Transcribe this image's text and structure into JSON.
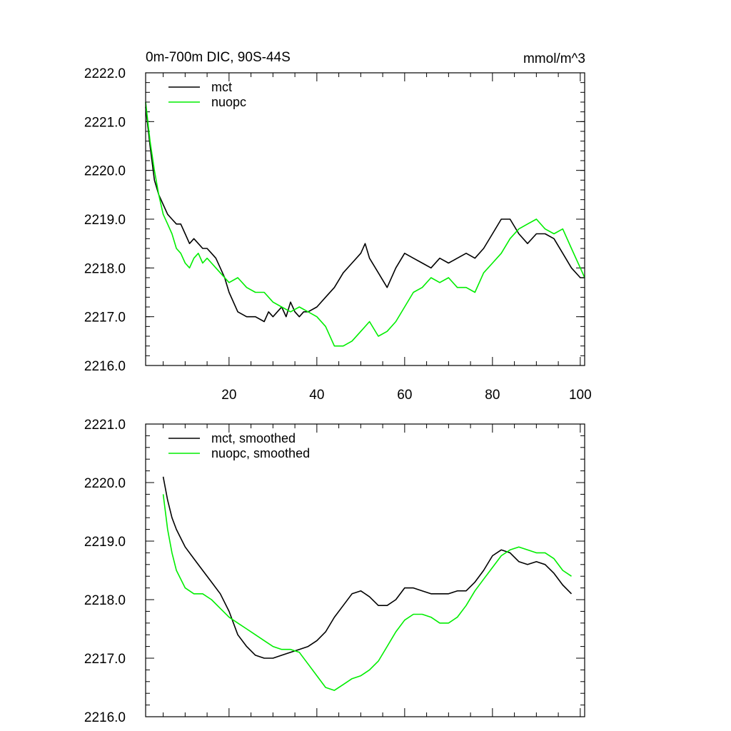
{
  "chart_data": [
    {
      "type": "line",
      "title": "0m-700m DIC, 90S-44S",
      "units_label": "mmol/m^3",
      "xlabel": "",
      "ylabel": "",
      "xlim": [
        1,
        101
      ],
      "ylim": [
        2216.0,
        2222.0
      ],
      "y_ticks": [
        2216.0,
        2217.0,
        2218.0,
        2219.0,
        2220.0,
        2221.0,
        2222.0
      ],
      "y_tick_labels": [
        "2216.0",
        "2217.0",
        "2218.0",
        "2219.0",
        "2220.0",
        "2221.0",
        "2222.0"
      ],
      "x_ticks": [
        20,
        40,
        60,
        80,
        100
      ],
      "x_tick_labels": [
        "20",
        "40",
        "60",
        "80",
        "100"
      ],
      "legend_position": "top-left",
      "grid": false,
      "series": [
        {
          "name": "mct",
          "color": "#000000",
          "x": [
            1,
            2,
            3,
            4,
            5,
            6,
            7,
            8,
            9,
            10,
            11,
            12,
            13,
            14,
            15,
            16,
            17,
            18,
            19,
            20,
            22,
            24,
            26,
            28,
            29,
            30,
            31,
            32,
            33,
            34,
            35,
            36,
            37,
            38,
            40,
            42,
            44,
            46,
            48,
            50,
            51,
            52,
            54,
            56,
            58,
            60,
            62,
            64,
            66,
            68,
            70,
            72,
            74,
            76,
            78,
            80,
            82,
            84,
            86,
            88,
            90,
            92,
            94,
            96,
            98,
            100,
            101
          ],
          "y": [
            2221.3,
            2220.5,
            2219.8,
            2219.5,
            2219.3,
            2219.1,
            2219.0,
            2218.9,
            2218.9,
            2218.7,
            2218.5,
            2218.6,
            2218.5,
            2218.4,
            2218.4,
            2218.3,
            2218.2,
            2218.0,
            2217.8,
            2217.5,
            2217.1,
            2217.0,
            2217.0,
            2216.9,
            2217.1,
            2217.0,
            2217.1,
            2217.2,
            2217.0,
            2217.3,
            2217.1,
            2217.0,
            2217.1,
            2217.1,
            2217.2,
            2217.4,
            2217.6,
            2217.9,
            2218.1,
            2218.3,
            2218.5,
            2218.2,
            2217.9,
            2217.6,
            2218.0,
            2218.3,
            2218.2,
            2218.1,
            2218.0,
            2218.2,
            2218.1,
            2218.2,
            2218.3,
            2218.2,
            2218.4,
            2218.7,
            2219.0,
            2219.0,
            2218.7,
            2218.5,
            2218.7,
            2218.7,
            2218.6,
            2218.3,
            2218.0,
            2217.8,
            2217.8
          ]
        },
        {
          "name": "nuopc",
          "color": "#00ee00",
          "x": [
            1,
            2,
            3,
            4,
            5,
            6,
            7,
            8,
            9,
            10,
            11,
            12,
            13,
            14,
            15,
            16,
            17,
            18,
            20,
            22,
            24,
            26,
            28,
            30,
            32,
            34,
            36,
            38,
            40,
            42,
            44,
            46,
            48,
            50,
            52,
            54,
            56,
            58,
            60,
            62,
            64,
            66,
            68,
            70,
            72,
            74,
            76,
            78,
            80,
            82,
            84,
            86,
            88,
            90,
            92,
            94,
            96,
            98,
            100,
            101
          ],
          "y": [
            2221.4,
            2220.6,
            2220.0,
            2219.5,
            2219.1,
            2218.9,
            2218.7,
            2218.4,
            2218.3,
            2218.1,
            2218.0,
            2218.2,
            2218.3,
            2218.1,
            2218.2,
            2218.1,
            2218.0,
            2217.9,
            2217.7,
            2217.8,
            2217.6,
            2217.5,
            2217.5,
            2217.3,
            2217.2,
            2217.1,
            2217.2,
            2217.1,
            2217.0,
            2216.8,
            2216.4,
            2216.4,
            2216.5,
            2216.7,
            2216.9,
            2216.6,
            2216.7,
            2216.9,
            2217.2,
            2217.5,
            2217.6,
            2217.8,
            2217.7,
            2217.8,
            2217.6,
            2217.6,
            2217.5,
            2217.9,
            2218.1,
            2218.3,
            2218.6,
            2218.8,
            2218.9,
            2219.0,
            2218.8,
            2218.7,
            2218.8,
            2218.4,
            2218.0,
            2217.8
          ]
        }
      ]
    },
    {
      "type": "line",
      "title": "",
      "xlabel": "",
      "ylabel": "",
      "xlim": [
        1,
        101
      ],
      "ylim": [
        2216.0,
        2221.0
      ],
      "y_ticks": [
        2216.0,
        2217.0,
        2218.0,
        2219.0,
        2220.0,
        2221.0
      ],
      "y_tick_labels": [
        "2216.0",
        "2217.0",
        "2218.0",
        "2219.0",
        "2220.0",
        "2221.0"
      ],
      "x_ticks": [
        20,
        40,
        60,
        80,
        100
      ],
      "x_tick_labels": [],
      "legend_position": "top-left",
      "grid": false,
      "series": [
        {
          "name": "mct, smoothed",
          "color": "#000000",
          "x": [
            5,
            6,
            7,
            8,
            10,
            12,
            14,
            16,
            18,
            20,
            22,
            24,
            26,
            28,
            30,
            32,
            34,
            36,
            38,
            40,
            42,
            44,
            46,
            48,
            50,
            52,
            54,
            56,
            58,
            60,
            62,
            64,
            66,
            68,
            70,
            72,
            74,
            76,
            78,
            80,
            82,
            84,
            86,
            88,
            90,
            92,
            94,
            96,
            98
          ],
          "y": [
            2220.1,
            2219.7,
            2219.4,
            2219.2,
            2218.9,
            2218.7,
            2218.5,
            2218.3,
            2218.1,
            2217.8,
            2217.4,
            2217.2,
            2217.05,
            2217.0,
            2217.0,
            2217.05,
            2217.1,
            2217.15,
            2217.2,
            2217.3,
            2217.45,
            2217.7,
            2217.9,
            2218.1,
            2218.15,
            2218.05,
            2217.9,
            2217.9,
            2218.0,
            2218.2,
            2218.2,
            2218.15,
            2218.1,
            2218.1,
            2218.1,
            2218.15,
            2218.15,
            2218.3,
            2218.5,
            2218.75,
            2218.85,
            2218.8,
            2218.65,
            2218.6,
            2218.65,
            2218.6,
            2218.45,
            2218.25,
            2218.1
          ]
        },
        {
          "name": "nuopc, smoothed",
          "color": "#00ee00",
          "x": [
            5,
            6,
            7,
            8,
            10,
            12,
            14,
            16,
            18,
            20,
            22,
            24,
            26,
            28,
            30,
            32,
            34,
            36,
            38,
            40,
            42,
            44,
            46,
            48,
            50,
            52,
            54,
            56,
            58,
            60,
            62,
            64,
            66,
            68,
            70,
            72,
            74,
            76,
            78,
            80,
            82,
            84,
            86,
            88,
            90,
            92,
            94,
            96,
            98
          ],
          "y": [
            2219.8,
            2219.2,
            2218.8,
            2218.5,
            2218.2,
            2218.1,
            2218.1,
            2218.0,
            2217.85,
            2217.7,
            2217.6,
            2217.5,
            2217.4,
            2217.3,
            2217.2,
            2217.15,
            2217.15,
            2217.1,
            2216.9,
            2216.7,
            2216.5,
            2216.45,
            2216.55,
            2216.65,
            2216.7,
            2216.8,
            2216.95,
            2217.2,
            2217.45,
            2217.65,
            2217.75,
            2217.75,
            2217.7,
            2217.6,
            2217.6,
            2217.7,
            2217.9,
            2218.15,
            2218.35,
            2218.55,
            2218.75,
            2218.85,
            2218.9,
            2218.85,
            2218.8,
            2218.8,
            2218.7,
            2218.5,
            2218.4
          ]
        }
      ]
    }
  ]
}
